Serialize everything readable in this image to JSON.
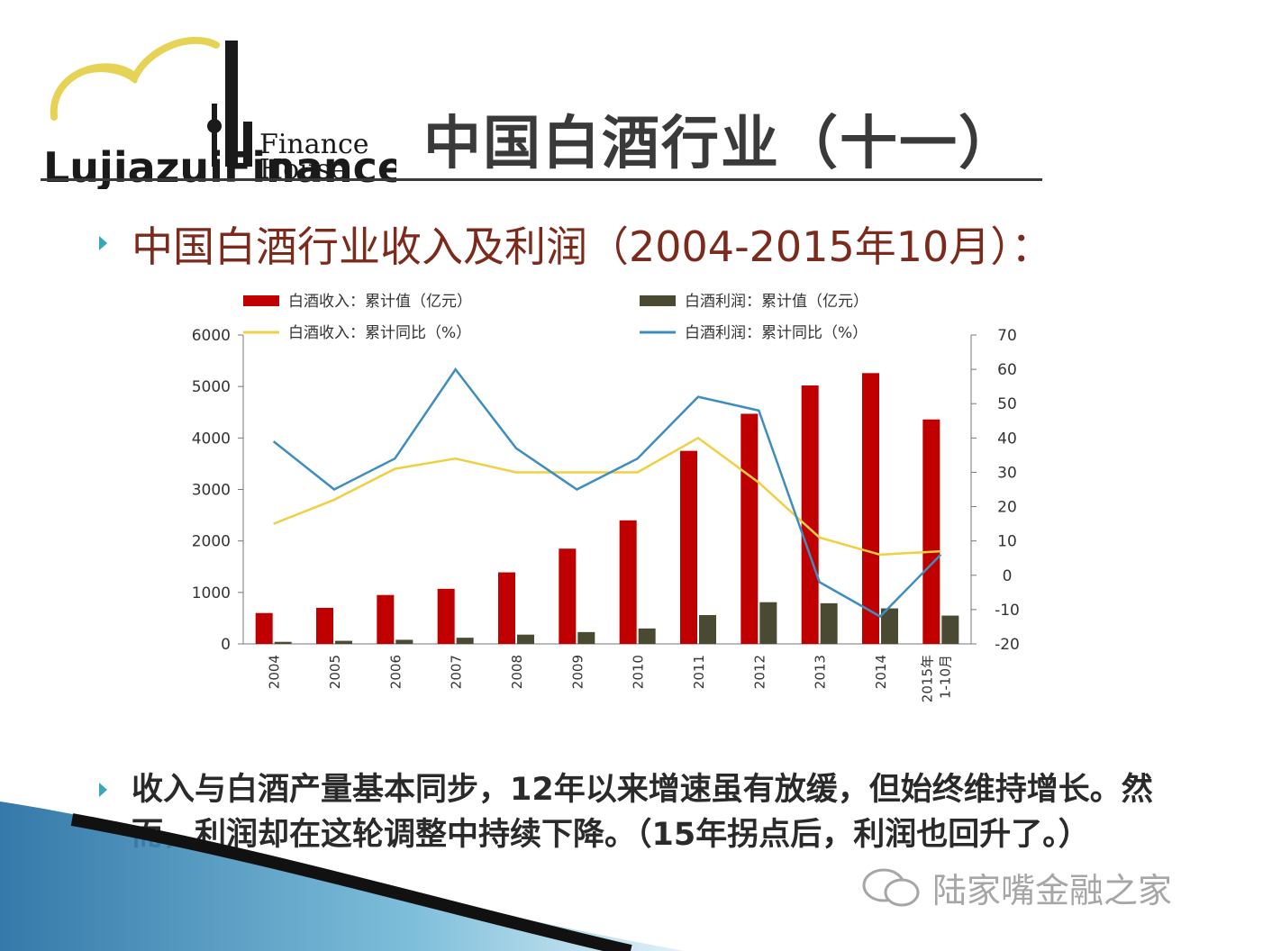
{
  "header": {
    "logo_text": "LujiazuiFinance House",
    "title": "中国白酒行业（十一）"
  },
  "subtitle": "中国白酒行业收入及利润（2004-2015年10月）：",
  "chart_data": {
    "type": "bar",
    "categories": [
      "2004",
      "2005",
      "2006",
      "2007",
      "2008",
      "2009",
      "2010",
      "2011",
      "2012",
      "2013",
      "2014",
      "2015年1-10月"
    ],
    "series": [
      {
        "name": "白酒收入：累计值（亿元）",
        "type": "bar",
        "axis": "left",
        "color": "#c00000",
        "values": [
          600,
          700,
          950,
          1070,
          1390,
          1850,
          2400,
          3750,
          4470,
          5020,
          5260,
          4360
        ]
      },
      {
        "name": "白酒利润：累计值（亿元）",
        "type": "bar",
        "axis": "left",
        "color": "#4a4a32",
        "values": [
          40,
          60,
          80,
          120,
          180,
          230,
          300,
          560,
          810,
          790,
          690,
          550
        ]
      },
      {
        "name": "白酒收入：累计同比（%）",
        "type": "line",
        "axis": "right",
        "color": "#f0d040",
        "values": [
          15,
          22,
          31,
          34,
          30,
          30,
          30,
          40,
          27,
          11,
          6,
          7
        ]
      },
      {
        "name": "白酒利润：累计同比（%）",
        "type": "line",
        "axis": "right",
        "color": "#3e8ebd",
        "values": [
          39,
          25,
          34,
          60,
          37,
          25,
          34,
          52,
          48,
          -2,
          -12,
          6
        ]
      }
    ],
    "yaxis_left": {
      "min": 0,
      "max": 6000,
      "ticks": [
        "0",
        "1000",
        "2000",
        "3000",
        "4000",
        "5000",
        "6000"
      ]
    },
    "yaxis_right": {
      "min": -20,
      "max": 70,
      "ticks": [
        "-20",
        "-10",
        "0",
        "10",
        "20",
        "30",
        "40",
        "50",
        "60",
        "70"
      ]
    },
    "grid": false,
    "legend_position": "top"
  },
  "body_text": "收入与白酒产量基本同步，12年以来增速虽有放缓，但始终维持增长。然而，利润却在这轮调整中持续下降。（15年拐点后，利润也回升了。）",
  "watermark": "陆家嘴金融之家",
  "colors": {
    "title": "#3a3a3a",
    "subtitle": "#7b2a1c",
    "bullet": "#3aa6b9",
    "wave": "#1e6aa0"
  }
}
